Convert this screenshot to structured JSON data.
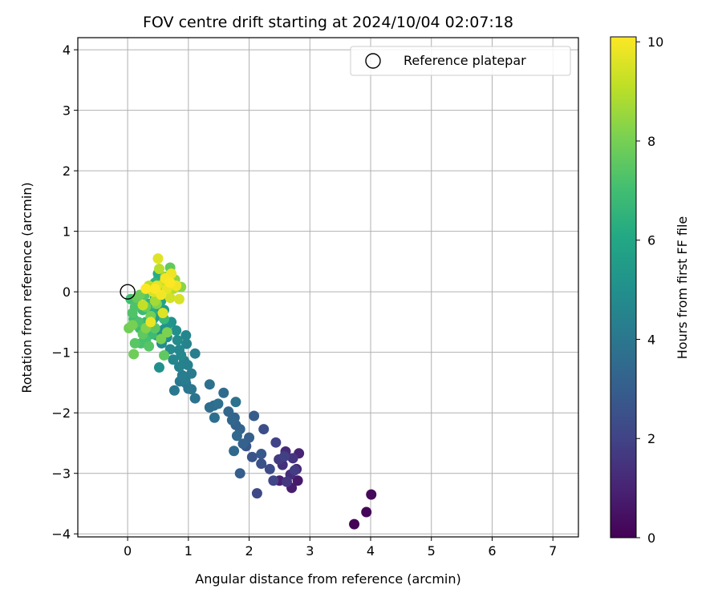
{
  "chart_data": {
    "type": "scatter",
    "title": "FOV centre drift starting at 2024/10/04 02:07:18",
    "xlabel": "Angular distance from reference (arcmin)",
    "ylabel": "Rotation from reference (arcmin)",
    "xlim": [
      -0.82,
      7.42
    ],
    "ylim": [
      -4.05,
      4.2
    ],
    "xticks": [
      0,
      1,
      2,
      3,
      4,
      5,
      6,
      7
    ],
    "yticks": [
      -4,
      -3,
      -2,
      -1,
      0,
      1,
      2,
      3,
      4
    ],
    "grid": true,
    "legend": {
      "placement": "top-right",
      "entries": [
        "Reference platepar"
      ]
    },
    "reference_point": {
      "name": "Reference platepar",
      "x": 0,
      "y": 0
    },
    "colorbar": {
      "label": "Hours from first FF file",
      "range": [
        0,
        10.1
      ],
      "ticks": [
        0,
        2,
        4,
        6,
        8,
        10
      ],
      "colormap": "viridis"
    },
    "points": [
      [
        3.73,
        -3.84,
        0.05
      ],
      [
        3.93,
        -3.64,
        0.15
      ],
      [
        4.01,
        -3.35,
        0.25
      ],
      [
        2.8,
        -3.12,
        0.7
      ],
      [
        2.7,
        -3.24,
        0.8
      ],
      [
        2.5,
        -3.12,
        0.9
      ],
      [
        2.82,
        -2.67,
        1.0
      ],
      [
        2.78,
        -2.93,
        1.1
      ],
      [
        2.6,
        -2.64,
        1.2
      ],
      [
        2.68,
        -3.02,
        1.3
      ],
      [
        2.55,
        -2.86,
        1.4
      ],
      [
        2.72,
        -2.75,
        1.5
      ],
      [
        2.62,
        -3.14,
        1.6
      ],
      [
        2.49,
        -2.77,
        1.7
      ],
      [
        2.75,
        -2.95,
        1.8
      ],
      [
        2.58,
        -2.72,
        1.9
      ],
      [
        2.44,
        -2.49,
        2.0
      ],
      [
        2.4,
        -3.12,
        2.1
      ],
      [
        2.13,
        -3.33,
        2.2
      ],
      [
        2.34,
        -2.93,
        2.3
      ],
      [
        2.24,
        -2.27,
        2.4
      ],
      [
        2.2,
        -2.84,
        2.5
      ],
      [
        2.05,
        -2.73,
        2.6
      ],
      [
        1.95,
        -2.55,
        2.7
      ],
      [
        2.2,
        -2.68,
        2.8
      ],
      [
        2.08,
        -2.05,
        2.9
      ],
      [
        1.85,
        -3.0,
        3.0
      ],
      [
        2.0,
        -2.41,
        3.05
      ],
      [
        1.9,
        -2.51,
        3.1
      ],
      [
        1.78,
        -2.2,
        3.15
      ],
      [
        1.85,
        -2.27,
        3.2
      ],
      [
        1.76,
        -2.08,
        3.25
      ],
      [
        1.72,
        -2.12,
        3.3
      ],
      [
        1.66,
        -1.98,
        3.35
      ],
      [
        1.8,
        -2.38,
        3.4
      ],
      [
        1.75,
        -2.63,
        3.45
      ],
      [
        1.58,
        -1.67,
        3.5
      ],
      [
        1.42,
        -1.88,
        3.55
      ],
      [
        1.35,
        -1.91,
        3.6
      ],
      [
        1.43,
        -2.08,
        3.65
      ],
      [
        1.49,
        -1.85,
        3.7
      ],
      [
        1.35,
        -1.53,
        3.75
      ],
      [
        1.78,
        -1.82,
        3.8
      ],
      [
        1.11,
        -1.76,
        3.85
      ],
      [
        1.0,
        -1.6,
        3.9
      ],
      [
        0.96,
        -1.51,
        3.95
      ],
      [
        1.05,
        -1.61,
        4.0
      ],
      [
        0.77,
        -1.63,
        4.05
      ],
      [
        0.86,
        -1.48,
        4.1
      ],
      [
        0.95,
        -1.45,
        4.15
      ],
      [
        1.05,
        -1.35,
        4.2
      ],
      [
        0.9,
        -1.38,
        4.25
      ],
      [
        1.11,
        -1.02,
        4.3
      ],
      [
        0.99,
        -1.21,
        4.35
      ],
      [
        0.93,
        -1.14,
        4.4
      ],
      [
        0.85,
        -1.24,
        4.45
      ],
      [
        0.97,
        -0.86,
        4.5
      ],
      [
        0.96,
        -0.72,
        4.55
      ],
      [
        0.85,
        -0.96,
        4.6
      ],
      [
        0.75,
        -1.12,
        4.65
      ],
      [
        0.88,
        -1.05,
        4.7
      ],
      [
        0.7,
        -0.95,
        4.75
      ],
      [
        0.82,
        -0.8,
        4.8
      ],
      [
        0.65,
        -0.75,
        4.85
      ],
      [
        0.56,
        -0.85,
        4.9
      ],
      [
        0.8,
        -0.64,
        4.95
      ],
      [
        0.52,
        -1.25,
        5.0
      ],
      [
        0.6,
        -0.62,
        5.05
      ],
      [
        0.72,
        -0.5,
        5.1
      ],
      [
        0.48,
        -0.72,
        5.15
      ],
      [
        0.65,
        -0.55,
        5.2
      ],
      [
        0.55,
        -0.4,
        5.3
      ],
      [
        0.45,
        -0.6,
        5.4
      ],
      [
        0.6,
        -0.3,
        5.5
      ],
      [
        0.5,
        -0.25,
        5.6
      ],
      [
        0.42,
        -0.45,
        5.7
      ],
      [
        0.55,
        -0.15,
        5.8
      ],
      [
        0.5,
        0.2,
        5.9
      ],
      [
        0.58,
        0.1,
        6.0
      ],
      [
        0.45,
        -0.1,
        6.1
      ],
      [
        0.5,
        0.3,
        6.2
      ],
      [
        0.4,
        -0.35,
        6.3
      ],
      [
        0.55,
        0.05,
        6.4
      ],
      [
        0.35,
        -0.2,
        6.5
      ],
      [
        0.45,
        0.15,
        6.6
      ],
      [
        0.3,
        -0.5,
        6.7
      ],
      [
        0.6,
        -0.45,
        6.75
      ],
      [
        0.25,
        -0.3,
        6.8
      ],
      [
        0.4,
        -0.7,
        6.85
      ],
      [
        0.2,
        -0.6,
        6.9
      ],
      [
        0.1,
        -0.45,
        6.95
      ],
      [
        0.15,
        -0.2,
        7.0
      ],
      [
        0.05,
        -0.12,
        7.05
      ],
      [
        0.3,
        -0.8,
        7.1
      ],
      [
        0.22,
        -0.85,
        7.15
      ],
      [
        0.18,
        -0.5,
        7.2
      ],
      [
        0.12,
        -0.25,
        7.25
      ],
      [
        0.08,
        -0.35,
        7.3
      ],
      [
        0.28,
        -0.05,
        7.35
      ],
      [
        0.35,
        -0.9,
        7.4
      ],
      [
        0.12,
        -0.85,
        7.45
      ],
      [
        0.45,
        -0.6,
        7.5
      ],
      [
        0.25,
        -0.7,
        7.55
      ],
      [
        0.6,
        -1.05,
        7.6
      ],
      [
        0.7,
        0.4,
        7.65
      ],
      [
        0.15,
        -0.1,
        7.7
      ],
      [
        0.3,
        -0.25,
        7.75
      ],
      [
        0.2,
        -0.05,
        7.8
      ],
      [
        0.1,
        -1.03,
        7.85
      ],
      [
        0.02,
        -0.6,
        7.9
      ],
      [
        0.38,
        -0.4,
        7.95
      ],
      [
        0.08,
        -0.55,
        8.0
      ],
      [
        0.55,
        -0.78,
        8.05
      ],
      [
        0.65,
        -0.67,
        8.1
      ],
      [
        0.48,
        -0.2,
        8.15
      ],
      [
        0.3,
        -0.6,
        8.2
      ],
      [
        0.88,
        0.08,
        8.3
      ],
      [
        0.78,
        0.2,
        8.4
      ],
      [
        0.62,
        0.25,
        8.5
      ],
      [
        0.55,
        0.0,
        8.6
      ],
      [
        0.45,
        -0.15,
        8.7
      ],
      [
        0.68,
        0.18,
        8.8
      ],
      [
        0.75,
        0.05,
        8.9
      ],
      [
        0.52,
        0.38,
        9.0
      ],
      [
        0.35,
        0.1,
        9.1
      ],
      [
        0.25,
        -0.22,
        9.2
      ],
      [
        0.6,
        0.15,
        9.3
      ],
      [
        0.7,
        -0.1,
        9.4
      ],
      [
        0.85,
        -0.12,
        9.5
      ],
      [
        0.42,
        0.0,
        9.55
      ],
      [
        0.58,
        -0.35,
        9.6
      ],
      [
        0.5,
        0.55,
        9.65
      ],
      [
        0.48,
        0.1,
        9.7
      ],
      [
        0.65,
        0.05,
        9.75
      ],
      [
        0.38,
        -0.5,
        9.8
      ],
      [
        0.72,
        0.3,
        9.85
      ],
      [
        0.8,
        0.1,
        9.9
      ],
      [
        0.55,
        -0.05,
        9.95
      ],
      [
        0.62,
        0.22,
        10.0
      ],
      [
        0.45,
        0.05,
        10.05
      ],
      [
        0.7,
        0.15,
        10.08
      ],
      [
        0.3,
        0.05,
        10.1
      ]
    ]
  }
}
